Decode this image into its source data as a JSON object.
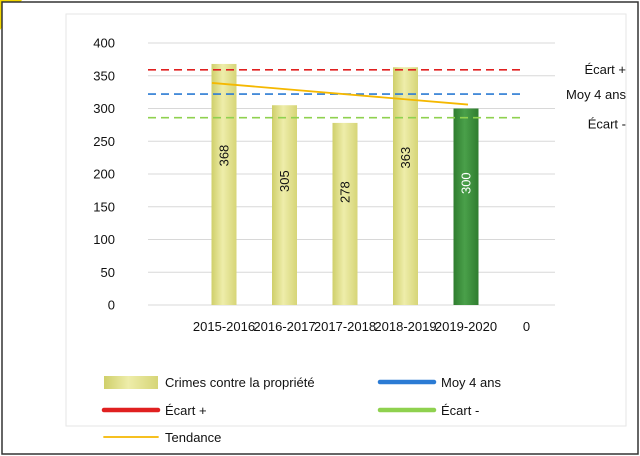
{
  "chart_data": {
    "type": "bar",
    "categories": [
      "2015-2016",
      "2016-2017",
      "2017-2018",
      "2018-2019",
      "2019-2020",
      "0"
    ],
    "series": [
      {
        "name": "Crimes contre la propriété",
        "values": [
          368,
          305,
          278,
          363,
          300,
          null
        ]
      }
    ],
    "bar_labels": [
      "368",
      "305",
      "278",
      "363",
      "300"
    ],
    "highlight_index": 4,
    "reference_lines": [
      {
        "name": "Écart +",
        "value": 359,
        "color": "#e02020",
        "dashed": true
      },
      {
        "name": "Moy 4 ans",
        "value": 322,
        "color": "#2b7bd4",
        "dashed": true
      },
      {
        "name": "Écart -",
        "value": 286,
        "color": "#8fd14f",
        "dashed": true
      }
    ],
    "trend": {
      "name": "Tendance",
      "color": "#f5b800",
      "start": 339,
      "end": 306
    },
    "yticks": [
      "0",
      "50",
      "100",
      "150",
      "200",
      "250",
      "300",
      "350",
      "400"
    ],
    "ylim": [
      0,
      400
    ],
    "grid": true,
    "legend_position": "bottom",
    "legend": [
      {
        "label": "Crimes contre la propriété",
        "kind": "bar"
      },
      {
        "label": "Moy 4 ans",
        "kind": "line"
      },
      {
        "label": "Écart +",
        "kind": "line"
      },
      {
        "label": "Écart -",
        "kind": "line"
      },
      {
        "label": "Tendance",
        "kind": "thin-line"
      }
    ],
    "colors": {
      "bar": "#e3e28a",
      "bar_highlight": "#3b8e3b",
      "grid": "#d8d8d8",
      "frame": "#333333",
      "corner_mark": "#f3d700"
    }
  }
}
